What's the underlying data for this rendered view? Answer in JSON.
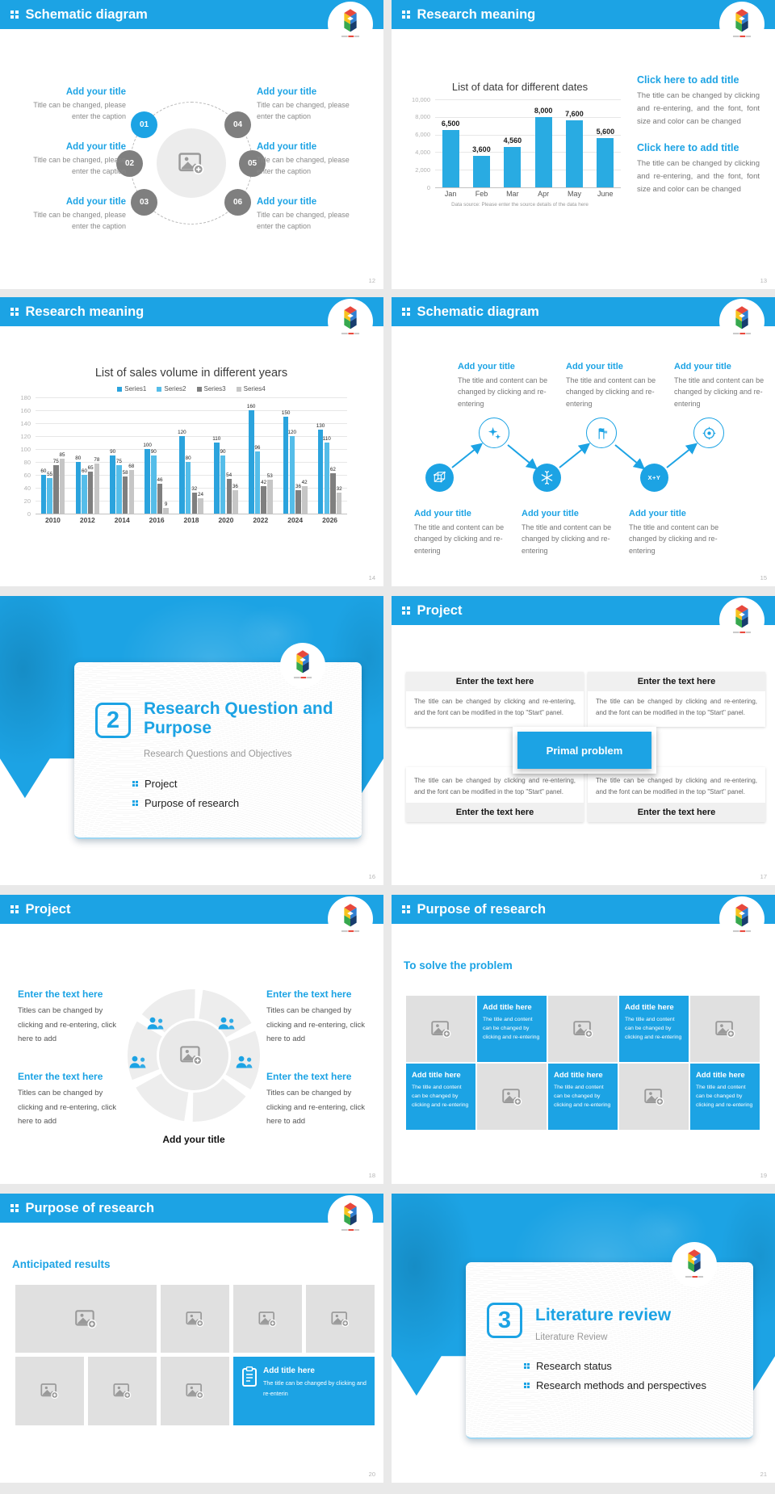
{
  "accent": "#1ca3e4",
  "slides": [
    {
      "header": "Schematic diagram",
      "page": "12",
      "nodes": [
        "01",
        "02",
        "03",
        "04",
        "05",
        "06"
      ],
      "left": [
        {
          "title": "Add your title",
          "caption": "Title can be changed, please enter the caption"
        },
        {
          "title": "Add your title",
          "caption": "Title can be changed, please enter the caption"
        },
        {
          "title": "Add your title",
          "caption": "Title can be changed, please enter the caption"
        }
      ],
      "right": [
        {
          "title": "Add your title",
          "caption": "Title can be changed, please enter the caption"
        },
        {
          "title": "Add your title",
          "caption": "Title can be changed, please enter the caption"
        },
        {
          "title": "Add your title",
          "caption": "Title can be changed, please enter the caption"
        }
      ]
    },
    {
      "header": "Research meaning",
      "page": "13",
      "blocks": [
        {
          "title": "Click here to add title",
          "body": "The title can be changed by clicking and re-entering, and the font, font size and color can be changed"
        },
        {
          "title": "Click here to add title",
          "body": "The title can be changed by clicking and re-entering, and the font, font size and color can be changed"
        }
      ]
    },
    {
      "header": "Research meaning",
      "page": "14"
    },
    {
      "header": "Schematic diagram",
      "page": "15",
      "top": [
        {
          "title": "Add your title",
          "body": "The title and content can be changed by clicking and re-entering"
        },
        {
          "title": "Add your title",
          "body": "The title and content can be changed by clicking and re-entering"
        },
        {
          "title": "Add your title",
          "body": "The title and content can be changed by clicking and re-entering"
        }
      ],
      "bottom": [
        {
          "title": "Add your title",
          "body": "The title and content can be changed by clicking and re-entering"
        },
        {
          "title": "Add your title",
          "body": "The title and content can be changed by clicking and re-entering"
        },
        {
          "title": "Add your title",
          "body": "The title and content can be changed by clicking and re-entering"
        }
      ]
    },
    {
      "type": "section",
      "page": "16",
      "number": "2",
      "title": "Research Question and Purpose",
      "subtitle": "Research Questions and Objectives",
      "bullets": [
        "Project",
        "Purpose of research"
      ]
    },
    {
      "header": "Project",
      "page": "17",
      "center": "Primal problem",
      "boxes": [
        {
          "title": "Enter the text here",
          "body": "The title can be changed by clicking and re-entering, and the font can be modified in the top \"Start\" panel."
        },
        {
          "title": "Enter the text here",
          "body": "The title can be changed by clicking and re-entering, and the font can be modified in the top \"Start\" panel."
        },
        {
          "title": "Enter the text here",
          "body": "The title can be changed by clicking and re-entering, and the font can be modified in the top \"Start\" panel."
        },
        {
          "title": "Enter the text here",
          "body": "The title can be changed by clicking and re-entering, and the font can be modified in the top \"Start\" panel."
        }
      ]
    },
    {
      "header": "Project",
      "page": "18",
      "center_label": "Add your title",
      "corners": [
        {
          "title": "Enter the text here",
          "body": "Titles can be changed by clicking and re-entering, click here to add"
        },
        {
          "title": "Enter the text here",
          "body": "Titles can be changed by clicking and re-entering, click here to add"
        },
        {
          "title": "Enter the text here",
          "body": "Titles can be changed by clicking and re-entering, click here to add"
        },
        {
          "title": "Enter the text here",
          "body": "Titles can be changed by clicking and re-entering, click here to add"
        }
      ]
    },
    {
      "header": "Purpose of research",
      "page": "19",
      "heading": "To solve the problem",
      "tile": {
        "title": "Add title here",
        "body": "The title and content can be changed by clicking and re-entering"
      }
    },
    {
      "header": "Purpose of research",
      "page": "20",
      "heading": "Anticipated results",
      "tile": {
        "title": "Add title here",
        "body": "The title can be changed by clicking and re-enterin"
      }
    },
    {
      "type": "section",
      "page": "21",
      "number": "3",
      "title": "Literature review",
      "subtitle": "Literature Review",
      "bullets": [
        "Research status",
        "Research methods and perspectives"
      ]
    }
  ],
  "chart_data": [
    {
      "type": "bar",
      "title": "List of data for different dates",
      "categories": [
        "Jan",
        "Feb",
        "Mar",
        "Apr",
        "May",
        "June"
      ],
      "values": [
        6500,
        3600,
        4560,
        8000,
        7600,
        5600
      ],
      "labels": [
        "6,500",
        "3,600",
        "4,560",
        "8,000",
        "7,600",
        "5,600"
      ],
      "ylim": [
        0,
        10000
      ],
      "ytick_step": 2000,
      "yticks": [
        "0",
        "2,000",
        "4,000",
        "6,000",
        "8,000",
        "10,000"
      ],
      "bar_color": "#29abe2",
      "grid": true,
      "legend_position": "none",
      "source_note": "Data source: Please enter the source details of the data here"
    },
    {
      "type": "bar",
      "title": "List of sales volume in different years",
      "categories": [
        "2010",
        "2012",
        "2014",
        "2016",
        "2018",
        "2020",
        "2022",
        "2024",
        "2026"
      ],
      "series": [
        {
          "name": "Series1",
          "color": "#2ba3dd",
          "values": [
            60,
            80,
            90,
            100,
            120,
            110,
            160,
            150,
            130
          ]
        },
        {
          "name": "Series2",
          "color": "#55bde9",
          "values": [
            55,
            60,
            75,
            90,
            80,
            90,
            96,
            120,
            110
          ]
        },
        {
          "name": "Series3",
          "color": "#7f7f7f",
          "values": [
            75,
            65,
            58,
            46,
            32,
            54,
            42,
            36,
            62
          ]
        },
        {
          "name": "Series4",
          "color": "#c6c6c6",
          "values": [
            85,
            78,
            68,
            9,
            24,
            36,
            53,
            42,
            32
          ]
        }
      ],
      "ylim": [
        0,
        180
      ],
      "ytick_step": 20,
      "grid": true,
      "legend_position": "top"
    }
  ]
}
